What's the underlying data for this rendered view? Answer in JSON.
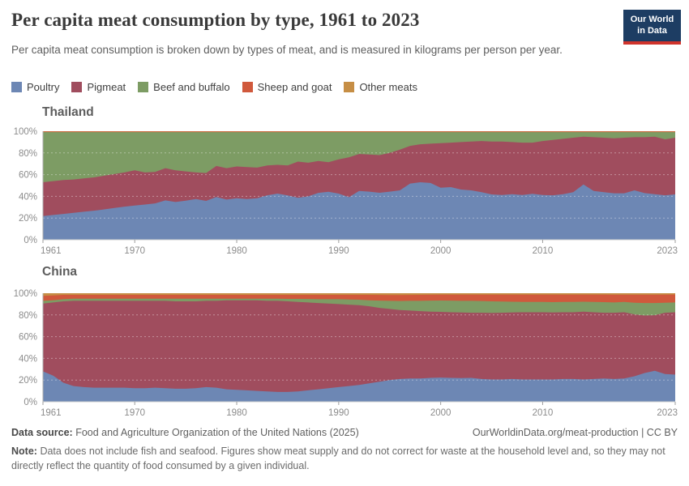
{
  "header": {
    "title": "Per capita meat consumption by type, 1961 to 2023",
    "subtitle": "Per capita meat consumption is broken down by types of meat, and is measured in kilograms per person per year."
  },
  "logo": {
    "line1": "Our World",
    "line2": "in Data",
    "background": "#1d3d63",
    "accent": "#d0342c"
  },
  "legend": [
    {
      "label": "Poultry",
      "color": "#6d87b4"
    },
    {
      "label": "Pigmeat",
      "color": "#a04d5e"
    },
    {
      "label": "Beef and buffalo",
      "color": "#7d9c64"
    },
    {
      "label": "Sheep and goat",
      "color": "#d0593c"
    },
    {
      "label": "Other meats",
      "color": "#c68e45"
    }
  ],
  "chart_data": [
    {
      "type": "area",
      "stacked": true,
      "normalized_percent": true,
      "title": "Thailand",
      "ylabel": "",
      "xlabel": "",
      "ylim": [
        0,
        100
      ],
      "y_ticks": [
        "0%",
        "20%",
        "40%",
        "60%",
        "80%",
        "100%"
      ],
      "x_ticks": [
        1961,
        1970,
        1980,
        1990,
        2000,
        2010,
        2023
      ],
      "grid": true,
      "x": [
        1961,
        1962,
        1963,
        1964,
        1965,
        1966,
        1967,
        1968,
        1969,
        1970,
        1971,
        1972,
        1973,
        1974,
        1975,
        1976,
        1977,
        1978,
        1979,
        1980,
        1981,
        1982,
        1983,
        1984,
        1985,
        1986,
        1987,
        1988,
        1989,
        1990,
        1991,
        1992,
        1993,
        1994,
        1995,
        1996,
        1997,
        1998,
        1999,
        2000,
        2001,
        2002,
        2003,
        2004,
        2005,
        2006,
        2007,
        2008,
        2009,
        2010,
        2011,
        2012,
        2013,
        2014,
        2015,
        2016,
        2017,
        2018,
        2019,
        2020,
        2021,
        2022,
        2023
      ],
      "series": [
        {
          "name": "Poultry",
          "color": "#6d87b4",
          "values": [
            21.8,
            22.8,
            23.8,
            24.8,
            25.8,
            26.8,
            28,
            29.3,
            30.5,
            31.5,
            32.5,
            33.5,
            36.3,
            34.8,
            36,
            37.5,
            35.8,
            39.3,
            37,
            38.3,
            37.5,
            38.3,
            41,
            42.5,
            40.8,
            38.7,
            39.9,
            43.2,
            44.2,
            42.5,
            39.2,
            45,
            44.3,
            43.3,
            44.3,
            45.5,
            51.8,
            53,
            52.3,
            48,
            48.5,
            46.3,
            45.5,
            43.8,
            41.8,
            41.3,
            42,
            41.3,
            42.3,
            41.3,
            41,
            42,
            43.8,
            51,
            45,
            43.8,
            42.8,
            42.8,
            45.5,
            43,
            42,
            41,
            41.8
          ]
        },
        {
          "name": "Pigmeat",
          "color": "#a04d5e",
          "values": [
            31.2,
            31.2,
            31.2,
            30.7,
            30.7,
            30.7,
            31,
            31.2,
            31.5,
            32.5,
            29.5,
            29,
            29.7,
            29.2,
            27,
            24.5,
            25.7,
            28.7,
            29,
            29.2,
            29.5,
            28.2,
            27.5,
            26.5,
            27.7,
            33.3,
            31.1,
            29.3,
            27.3,
            31.5,
            36.8,
            34,
            34.2,
            34.7,
            35.7,
            37.5,
            34.7,
            35,
            36.2,
            41,
            41,
            43.7,
            45,
            47.2,
            48.7,
            49.2,
            48,
            48.2,
            47.2,
            49.7,
            51,
            51,
            50.2,
            44,
            49.5,
            50.2,
            50.7,
            51.2,
            49,
            51.5,
            53,
            51.5,
            52.2
          ]
        },
        {
          "name": "Beef and buffalo",
          "color": "#7d9c64",
          "values": [
            46.2,
            45.2,
            44.2,
            43.7,
            42.7,
            41.7,
            40.2,
            38.7,
            37.2,
            35.2,
            37.2,
            36.7,
            33.2,
            35.2,
            36.2,
            37.2,
            37.7,
            31.2,
            33.2,
            31.7,
            32.2,
            32.7,
            30.7,
            30.2,
            30.7,
            27.2,
            28.2,
            26.7,
            27.7,
            25.2,
            23.2,
            20.2,
            20.7,
            21.2,
            19.2,
            16.2,
            12.7,
            11.2,
            10.7,
            10.2,
            9.7,
            9.2,
            8.7,
            8.2,
            8.7,
            8.7,
            9.2,
            9.7,
            9.7,
            8.2,
            7.2,
            6.2,
            5.2,
            4.2,
            4.7,
            5.2,
            5.7,
            5.2,
            4.7,
            4.7,
            4.2,
            6.7,
            5.2
          ]
        },
        {
          "name": "Sheep and goat",
          "color": "#d0593c",
          "values": [
            0.5,
            0.5,
            0.5,
            0.5,
            0.5,
            0.5,
            0.5,
            0.5,
            0.5,
            0.5,
            0.5,
            0.5,
            0.5,
            0.5,
            0.5,
            0.5,
            0.5,
            0.5,
            0.5,
            0.5,
            0.5,
            0.5,
            0.5,
            0.5,
            0.5,
            0.5,
            0.5,
            0.5,
            0.5,
            0.5,
            0.5,
            0.5,
            0.5,
            0.5,
            0.5,
            0.5,
            0.5,
            0.5,
            0.5,
            0.5,
            0.5,
            0.5,
            0.5,
            0.5,
            0.5,
            0.5,
            0.5,
            0.5,
            0.5,
            0.5,
            0.5,
            0.5,
            0.5,
            0.5,
            0.5,
            0.5,
            0.5,
            0.5,
            0.5,
            0.5,
            0.5,
            0.5,
            0.5
          ]
        },
        {
          "name": "Other meats",
          "color": "#c68e45",
          "values": [
            0.3,
            0.3,
            0.3,
            0.3,
            0.3,
            0.3,
            0.3,
            0.3,
            0.3,
            0.3,
            0.3,
            0.3,
            0.3,
            0.3,
            0.3,
            0.3,
            0.3,
            0.3,
            0.3,
            0.3,
            0.3,
            0.3,
            0.3,
            0.3,
            0.3,
            0.3,
            0.3,
            0.3,
            0.3,
            0.3,
            0.3,
            0.3,
            0.3,
            0.3,
            0.3,
            0.3,
            0.3,
            0.3,
            0.3,
            0.3,
            0.3,
            0.3,
            0.3,
            0.3,
            0.3,
            0.3,
            0.3,
            0.3,
            0.3,
            0.3,
            0.3,
            0.3,
            0.3,
            0.3,
            0.3,
            0.3,
            0.3,
            0.3,
            0.3,
            0.3,
            0.3,
            0.3,
            0.3
          ]
        }
      ]
    },
    {
      "type": "area",
      "stacked": true,
      "normalized_percent": true,
      "title": "China",
      "ylabel": "",
      "xlabel": "",
      "ylim": [
        0,
        100
      ],
      "y_ticks": [
        "0%",
        "20%",
        "40%",
        "60%",
        "80%",
        "100%"
      ],
      "x_ticks": [
        1961,
        1970,
        1980,
        1990,
        2000,
        2010,
        2023
      ],
      "grid": true,
      "x": [
        1961,
        1962,
        1963,
        1964,
        1965,
        1966,
        1967,
        1968,
        1969,
        1970,
        1971,
        1972,
        1973,
        1974,
        1975,
        1976,
        1977,
        1978,
        1979,
        1980,
        1981,
        1982,
        1983,
        1984,
        1985,
        1986,
        1987,
        1988,
        1989,
        1990,
        1991,
        1992,
        1993,
        1994,
        1995,
        1996,
        1997,
        1998,
        1999,
        2000,
        2001,
        2002,
        2003,
        2004,
        2005,
        2006,
        2007,
        2008,
        2009,
        2010,
        2011,
        2012,
        2013,
        2014,
        2015,
        2016,
        2017,
        2018,
        2019,
        2020,
        2021,
        2022,
        2023
      ],
      "series": [
        {
          "name": "Poultry",
          "color": "#6d87b4",
          "values": [
            28,
            24,
            17.5,
            14.5,
            13.5,
            13,
            13,
            13,
            13,
            12.5,
            12.5,
            13,
            12.5,
            12,
            12,
            12.5,
            13.5,
            13,
            11.5,
            11,
            10.5,
            10,
            9.5,
            9,
            9,
            9.5,
            10.5,
            11.5,
            12.5,
            13.5,
            14.5,
            15.5,
            17,
            18.5,
            20,
            21,
            21.5,
            21.5,
            22,
            22.3,
            22,
            21.8,
            22,
            21,
            20.5,
            20.5,
            21,
            20.5,
            20.5,
            20.5,
            20.5,
            21,
            21,
            20.5,
            21,
            21.5,
            21,
            21.5,
            23.5,
            26.5,
            28.5,
            25.5,
            25
          ]
        },
        {
          "name": "Pigmeat",
          "color": "#a04d5e",
          "values": [
            62.5,
            67.5,
            75,
            78.5,
            79.5,
            80,
            80,
            80,
            80,
            80.5,
            80.5,
            80,
            80.5,
            80.5,
            80.5,
            80,
            79.5,
            80,
            82,
            82.5,
            83,
            83.5,
            83.5,
            84,
            83.5,
            82.5,
            81,
            79.5,
            78,
            76.5,
            75,
            73.5,
            71,
            68,
            65.5,
            63.5,
            62.5,
            62,
            61,
            60.5,
            60.5,
            60.5,
            60,
            61,
            61.3,
            61.5,
            61.3,
            62,
            62,
            62,
            61.8,
            61.5,
            61.5,
            62.5,
            61.5,
            60.5,
            61,
            61,
            57,
            53,
            51.3,
            56.5,
            57.5
          ]
        },
        {
          "name": "Beef and buffalo",
          "color": "#7d9c64",
          "values": [
            2.5,
            2,
            2,
            2,
            2,
            2,
            2,
            2,
            2,
            2,
            2,
            2,
            2,
            2.5,
            2.5,
            2.5,
            2,
            2,
            1.5,
            1.5,
            1.5,
            1.5,
            2,
            2,
            2.3,
            2.8,
            3.2,
            3.5,
            4,
            4.5,
            4.7,
            5,
            5.5,
            6.7,
            7.5,
            8.3,
            9,
            9.5,
            10.2,
            10.5,
            10.7,
            10.7,
            11,
            10.8,
            10.7,
            10.3,
            9.9,
            9.5,
            9.5,
            9.5,
            9.5,
            9.5,
            9.5,
            9.2,
            9.5,
            9.8,
            9.5,
            9.5,
            10.8,
            11.5,
            11.2,
            9.3,
            9
          ]
        },
        {
          "name": "Sheep and goat",
          "color": "#d0593c",
          "values": [
            4.5,
            4.5,
            4,
            3.5,
            3.5,
            3.5,
            3.5,
            3.5,
            3.5,
            3.5,
            3.5,
            3.5,
            3.5,
            3.5,
            3.5,
            3.5,
            3.5,
            3.5,
            3.5,
            3.5,
            3.5,
            3.5,
            3.5,
            3.5,
            3.7,
            3.7,
            3.8,
            4,
            4,
            4,
            4.3,
            4.5,
            5,
            5.2,
            5.3,
            5.5,
            5.4,
            5.5,
            5.4,
            5.4,
            5.5,
            5.7,
            5.7,
            5.9,
            6.2,
            6.4,
            6.5,
            6.7,
            6.7,
            6.7,
            6.9,
            6.7,
            6.7,
            6.5,
            6.7,
            6.9,
            7.1,
            6.6,
            7.3,
            7.6,
            7.6,
            7.4,
            7.3
          ]
        },
        {
          "name": "Other meats",
          "color": "#c68e45",
          "values": [
            2.5,
            2,
            1.5,
            1.5,
            1.5,
            1.5,
            1.5,
            1.5,
            1.5,
            1.5,
            1.5,
            1.5,
            1.5,
            1.5,
            1.5,
            1.5,
            1.5,
            1.5,
            1.5,
            1.5,
            1.5,
            1.5,
            1.5,
            1.5,
            1.5,
            1.5,
            1.5,
            1.5,
            1.5,
            1.5,
            1.5,
            1.5,
            1.5,
            1.6,
            1.7,
            1.7,
            1.6,
            1.5,
            1.4,
            1.3,
            1.3,
            1.3,
            1.3,
            1.3,
            1.3,
            1.3,
            1.3,
            1.3,
            1.3,
            1.3,
            1.3,
            1.3,
            1.3,
            1.3,
            1.3,
            1.3,
            1.4,
            1.4,
            1.4,
            1.4,
            1.4,
            1.3,
            1.2
          ]
        }
      ]
    }
  ],
  "footer": {
    "source_label": "Data source:",
    "source_text": "Food and Agriculture Organization of the United Nations (2025)",
    "link": "OurWorldinData.org/meat-production | CC BY",
    "note_label": "Note:",
    "note_text": "Data does not include fish and seafood. Figures show meat supply and do not correct for waste at the household level and, so they may not directly reflect the quantity of food consumed by a given individual."
  }
}
